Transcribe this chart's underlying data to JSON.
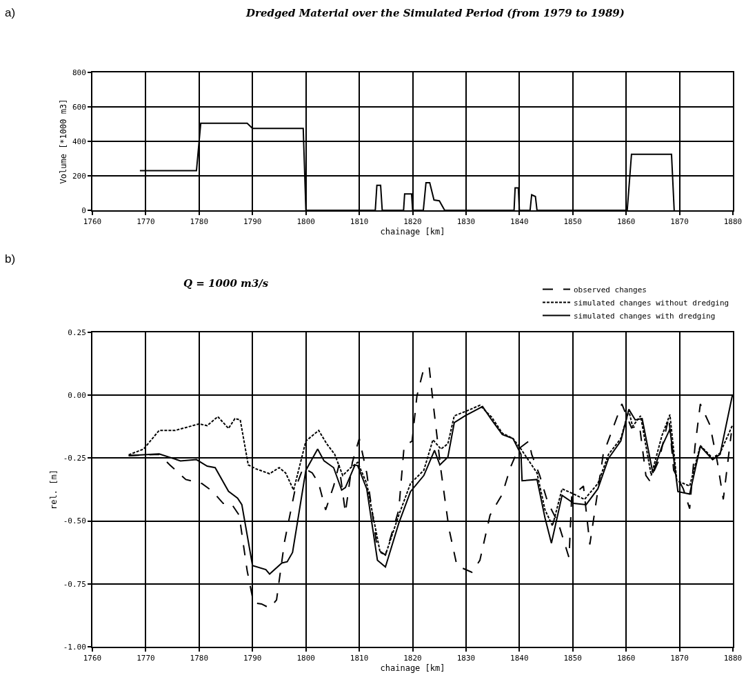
{
  "chart_data": [
    {
      "type": "line",
      "title": "Dredged Material over the Simulated Period (from 1979 to 1989)",
      "xlabel": "chainage [km]",
      "ylabel": "Volume [*1000 m3]",
      "annotations": [
        "a)"
      ],
      "xlim": [
        1760,
        1880
      ],
      "xticks": [
        1760,
        1770,
        1780,
        1790,
        1800,
        1810,
        1820,
        1830,
        1840,
        1850,
        1860,
        1870,
        1880
      ],
      "ylim": [
        0,
        800
      ],
      "yticks": [
        0,
        200,
        400,
        600,
        800
      ],
      "grid": true,
      "legend": false,
      "series": [
        {
          "color": "#000000",
          "line_style": "solid",
          "x": [
            1768.9,
            1779.5,
            1780.3,
            1789,
            1790,
            1799.5,
            1800,
            1813,
            1813.3,
            1814,
            1814.3,
            1818.3,
            1818.5,
            1819.8,
            1820,
            1822,
            1822.5,
            1823.2,
            1824,
            1825,
            1826,
            1839,
            1839.2,
            1839.8,
            1840,
            1842,
            1842.3,
            1843,
            1843.3,
            1860.2,
            1861,
            1868.5,
            1869
          ],
          "values": [
            230,
            230,
            505,
            505,
            475,
            475,
            0,
            0,
            145,
            145,
            0,
            0,
            95,
            95,
            0,
            0,
            160,
            160,
            60,
            55,
            0,
            0,
            130,
            130,
            0,
            0,
            90,
            80,
            0,
            0,
            325,
            325,
            0
          ]
        }
      ]
    },
    {
      "type": "line",
      "title": "Q = 1000 m3/s",
      "xlabel": "chainage [km]",
      "ylabel": "rel. [m]",
      "annotations": [
        "b)"
      ],
      "xlim": [
        1760,
        1880
      ],
      "xticks": [
        1760,
        1770,
        1780,
        1790,
        1800,
        1810,
        1820,
        1830,
        1840,
        1850,
        1860,
        1870,
        1880
      ],
      "ylim": [
        -1.0,
        0.25
      ],
      "yticks": [
        {
          "value": -1.0,
          "label": "-1.00"
        },
        {
          "value": -0.75,
          "label": "-0.75"
        },
        {
          "value": -0.5,
          "label": "-0.50"
        },
        {
          "value": -0.25,
          "label": "-0.25"
        },
        {
          "value": 0,
          "label": "0.00"
        },
        {
          "value": 0.25,
          "label": "0.25"
        }
      ],
      "grid": true,
      "legend": "top right",
      "series": [
        {
          "name": "observed changes",
          "color": "#000000",
          "line_style": "dashed",
          "x": [
            1766.8,
            1772.5,
            1774.5,
            1777.5,
            1780.5,
            1782.5,
            1784.5,
            1786,
            1787.5,
            1789,
            1790.2,
            1791.7,
            1793.2,
            1794.5,
            1796,
            1798,
            1799.5,
            1801.2,
            1802.4,
            1803.7,
            1805.2,
            1806.2,
            1807.4,
            1808.7,
            1810,
            1811.4,
            1813.4,
            1814.9,
            1817.4,
            1818.4,
            1819.9,
            1820.8,
            1822.1,
            1823.1,
            1823.8,
            1825.3,
            1826.8,
            1828.3,
            1831.1,
            1832.6,
            1834.5,
            1836.8,
            1838.3,
            1839.8,
            1841.8,
            1842.3,
            1843.8,
            1845.3,
            1847.3,
            1849.3,
            1849.8,
            1852,
            1853.2,
            1855.7,
            1859.2,
            1861,
            1862.5,
            1863.7,
            1864.4,
            1866.2,
            1868,
            1868.9,
            1870.7,
            1871.9,
            1872.9,
            1873.9,
            1875.7,
            1877.1,
            1878.2,
            1879.7
          ],
          "values": [
            -0.24,
            -0.235,
            -0.277,
            -0.335,
            -0.351,
            -0.382,
            -0.43,
            -0.43,
            -0.477,
            -0.698,
            -0.825,
            -0.83,
            -0.846,
            -0.814,
            -0.582,
            -0.372,
            -0.288,
            -0.309,
            -0.351,
            -0.456,
            -0.361,
            -0.277,
            -0.467,
            -0.267,
            -0.172,
            -0.309,
            -0.614,
            -0.635,
            -0.456,
            -0.203,
            -0.182,
            -0.003,
            0.107,
            0.113,
            -0.024,
            -0.298,
            -0.53,
            -0.678,
            -0.704,
            -0.656,
            -0.477,
            -0.393,
            -0.288,
            -0.214,
            -0.182,
            -0.235,
            -0.319,
            -0.425,
            -0.509,
            -0.646,
            -0.403,
            -0.361,
            -0.593,
            -0.235,
            -0.035,
            -0.13,
            -0.12,
            -0.319,
            -0.34,
            -0.256,
            -0.087,
            -0.298,
            -0.372,
            -0.451,
            -0.203,
            -0.035,
            -0.119,
            -0.267,
            -0.414,
            -0.151
          ]
        },
        {
          "name": "simulated changes without dredging",
          "color": "#000000",
          "line_style": "dotted",
          "x": [
            1766.8,
            1769.6,
            1772.5,
            1775.5,
            1780,
            1781.5,
            1783.5,
            1785.5,
            1786.7,
            1787.7,
            1789.2,
            1790.7,
            1793.2,
            1795,
            1796.2,
            1797.7,
            1800,
            1802.4,
            1803.9,
            1805.4,
            1806.9,
            1808.4,
            1809.7,
            1811.4,
            1813.9,
            1814.9,
            1817.4,
            1819.6,
            1822.1,
            1823.8,
            1825.3,
            1826.6,
            1827.8,
            1830.3,
            1832.6,
            1834.8,
            1836.8,
            1838.8,
            1840.3,
            1843.3,
            1844.8,
            1846.2,
            1848,
            1850.2,
            1852.2,
            1854.7,
            1856.7,
            1859,
            1860.5,
            1861.2,
            1862.7,
            1864.7,
            1866.7,
            1868.2,
            1869.5,
            1871.9,
            1873.9,
            1876.2,
            1877.6,
            1879.9
          ],
          "values": [
            -0.237,
            -0.214,
            -0.14,
            -0.14,
            -0.114,
            -0.121,
            -0.085,
            -0.132,
            -0.093,
            -0.098,
            -0.277,
            -0.293,
            -0.312,
            -0.288,
            -0.309,
            -0.377,
            -0.182,
            -0.14,
            -0.193,
            -0.235,
            -0.319,
            -0.288,
            -0.267,
            -0.351,
            -0.624,
            -0.635,
            -0.477,
            -0.351,
            -0.298,
            -0.177,
            -0.214,
            -0.193,
            -0.082,
            -0.061,
            -0.04,
            -0.087,
            -0.151,
            -0.172,
            -0.214,
            -0.309,
            -0.456,
            -0.519,
            -0.372,
            -0.393,
            -0.414,
            -0.351,
            -0.235,
            -0.172,
            -0.061,
            -0.124,
            -0.082,
            -0.319,
            -0.161,
            -0.077,
            -0.34,
            -0.361,
            -0.2,
            -0.25,
            -0.23,
            -0.12
          ]
        },
        {
          "name": "simulated changes with dredging",
          "color": "#000000",
          "line_style": "solid",
          "x": [
            1766.8,
            1772.5,
            1776.5,
            1779.5,
            1781.5,
            1783,
            1785.5,
            1787.2,
            1788,
            1790,
            1792.5,
            1793.2,
            1795.5,
            1796.5,
            1797.5,
            1800,
            1802.2,
            1803.4,
            1805.2,
            1806.7,
            1807.4,
            1809.2,
            1809.7,
            1811.4,
            1813.4,
            1814.9,
            1817.4,
            1819.6,
            1822.1,
            1824.1,
            1825.1,
            1826.6,
            1827.8,
            1829.8,
            1833.1,
            1834.8,
            1836.8,
            1838.8,
            1840.3,
            1840.5,
            1843.3,
            1844.8,
            1846,
            1848,
            1850.2,
            1852.5,
            1854.7,
            1856.7,
            1859,
            1860.5,
            1861.7,
            1863,
            1865,
            1866.7,
            1868.2,
            1869.7,
            1871.9,
            1873.9,
            1876.2,
            1877.6,
            1879.9
          ],
          "values": [
            -0.24,
            -0.233,
            -0.261,
            -0.256,
            -0.282,
            -0.288,
            -0.382,
            -0.409,
            -0.435,
            -0.677,
            -0.693,
            -0.711,
            -0.667,
            -0.662,
            -0.625,
            -0.298,
            -0.214,
            -0.261,
            -0.288,
            -0.377,
            -0.367,
            -0.277,
            -0.28,
            -0.372,
            -0.656,
            -0.683,
            -0.509,
            -0.383,
            -0.319,
            -0.219,
            -0.277,
            -0.246,
            -0.109,
            -0.082,
            -0.045,
            -0.098,
            -0.156,
            -0.172,
            -0.235,
            -0.34,
            -0.335,
            -0.488,
            -0.588,
            -0.398,
            -0.43,
            -0.435,
            -0.372,
            -0.251,
            -0.182,
            -0.056,
            -0.098,
            -0.093,
            -0.309,
            -0.203,
            -0.135,
            -0.383,
            -0.393,
            -0.203,
            -0.256,
            -0.235,
            0.0
          ]
        }
      ]
    }
  ]
}
